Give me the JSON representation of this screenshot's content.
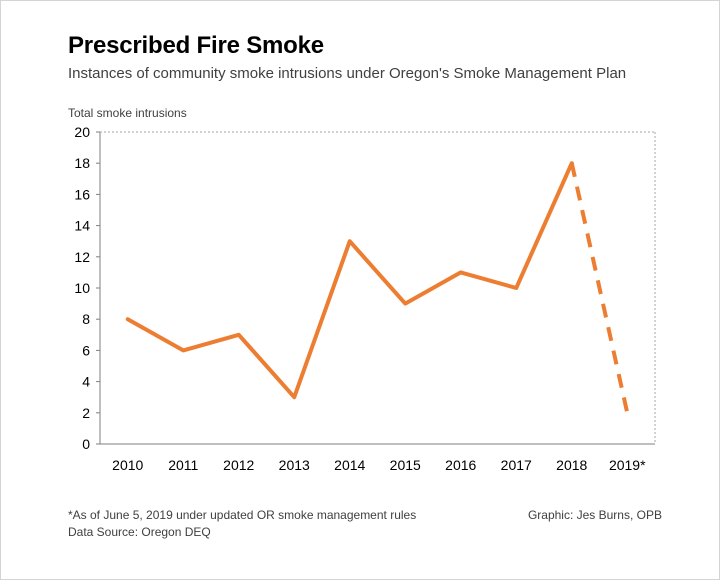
{
  "chart_data": {
    "type": "line",
    "title": "Prescribed Fire Smoke",
    "subtitle": "Instances of community smoke intrusions under Oregon's Smoke Management Plan",
    "ylabel": "Total smoke intrusions",
    "xlabel": "",
    "categories": [
      "2010",
      "2011",
      "2012",
      "2013",
      "2014",
      "2015",
      "2016",
      "2017",
      "2018",
      "2019*"
    ],
    "series": [
      {
        "values": [
          8,
          6,
          7,
          3,
          13,
          9,
          11,
          10,
          18,
          2
        ],
        "dashed_from_index": 8
      }
    ],
    "ylim": [
      0,
      20
    ],
    "yticks": [
      0,
      2,
      4,
      6,
      8,
      10,
      12,
      14,
      16,
      18,
      20
    ],
    "grid": false,
    "line_color": "#ED7D31",
    "axis_color": "#7f7f7f"
  },
  "footer": {
    "footnote": "*As of June 5, 2019 under updated OR smoke management rules",
    "source": "Data Source:  Oregon DEQ",
    "credit": "Graphic: Jes Burns, OPB"
  }
}
